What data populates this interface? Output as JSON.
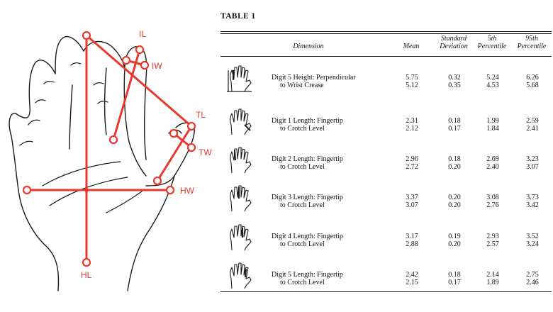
{
  "figure": {
    "labels": {
      "il": "IL",
      "iw": "IW",
      "tl": "TL",
      "tw": "TW",
      "hw": "HW",
      "hl": "HL"
    },
    "accent_color": "#e8392d"
  },
  "table": {
    "title": "TABLE 1",
    "headers": {
      "dimension": "Dimension",
      "mean": "Mean",
      "sd_line1": "Standard",
      "sd_line2": "Deviation",
      "p5_line1": "5th",
      "p5_line2": "Percentile",
      "p95_line1": "95th",
      "p95_line2": "Percentile"
    },
    "rows": [
      {
        "icon": "hand-digit-5-height-icon",
        "dim_line1": "Digit 5 Height: Perpendicular",
        "dim_line2": "to Wrist Crease",
        "mean": [
          "5.75",
          "5.12"
        ],
        "sd": [
          "0.32",
          "0.35"
        ],
        "p5": [
          "5.24",
          "4.53"
        ],
        "p95": [
          "6.26",
          "5.68"
        ]
      },
      {
        "icon": "hand-digit-1-length-icon",
        "dim_line1": "Digit 1 Length: Fingertip",
        "dim_line2": "to Crotch Level",
        "mean": [
          "2.31",
          "2.12"
        ],
        "sd": [
          "0.18",
          "0.17"
        ],
        "p5": [
          "1.99",
          "1.84"
        ],
        "p95": [
          "2.59",
          "2.41"
        ]
      },
      {
        "icon": "hand-digit-2-length-icon",
        "dim_line1": "Digit 2 Length: Fingertip",
        "dim_line2": "to Crotch Level",
        "mean": [
          "2.96",
          "2.72"
        ],
        "sd": [
          "0.18",
          "0.20"
        ],
        "p5": [
          "2.69",
          "2.40"
        ],
        "p95": [
          "3.23",
          "3.07"
        ]
      },
      {
        "icon": "hand-digit-3-length-icon",
        "dim_line1": "Digit 3 Length: Fingertip",
        "dim_line2": "to Crotch Level",
        "mean": [
          "3.37",
          "3.07"
        ],
        "sd": [
          "0.20",
          "0.20"
        ],
        "p5": [
          "3.08",
          "2.76"
        ],
        "p95": [
          "3.73",
          "3.42"
        ]
      },
      {
        "icon": "hand-digit-4-length-icon",
        "dim_line1": "Digit 4 Length: Fingertip",
        "dim_line2": "to Crotch Level",
        "mean": [
          "3.17",
          "2.88"
        ],
        "sd": [
          "0.19",
          "0.20"
        ],
        "p5": [
          "2.93",
          "2.57"
        ],
        "p95": [
          "3.52",
          "3.24"
        ]
      },
      {
        "icon": "hand-digit-5-length-icon",
        "dim_line1": "Digit 5 Length: Fingertip",
        "dim_line2": "to Crotch Level",
        "mean": [
          "2.42",
          "2.15"
        ],
        "sd": [
          "0.18",
          "0.17"
        ],
        "p5": [
          "2.14",
          "1.89"
        ],
        "p95": [
          "2.75",
          "2.46"
        ]
      }
    ]
  }
}
